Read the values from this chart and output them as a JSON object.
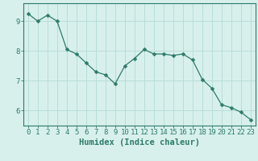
{
  "x": [
    0,
    1,
    2,
    3,
    4,
    5,
    6,
    7,
    8,
    9,
    10,
    11,
    12,
    13,
    14,
    15,
    16,
    17,
    18,
    19,
    20,
    21,
    22,
    23
  ],
  "y": [
    9.25,
    9.0,
    9.2,
    9.0,
    8.05,
    7.9,
    7.6,
    7.3,
    7.2,
    6.9,
    7.5,
    7.75,
    8.05,
    7.9,
    7.9,
    7.85,
    7.9,
    7.7,
    7.05,
    6.75,
    6.2,
    6.1,
    5.95,
    5.7
  ],
  "line_color": "#2d7b6b",
  "marker": "D",
  "marker_size": 2.5,
  "bg_color": "#d8f0ec",
  "grid_color": "#b8ddd8",
  "xlabel": "Humidex (Indice chaleur)",
  "xlim": [
    -0.5,
    23.5
  ],
  "ylim": [
    5.5,
    9.6
  ],
  "yticks": [
    6,
    7,
    8,
    9
  ],
  "xticks": [
    0,
    1,
    2,
    3,
    4,
    5,
    6,
    7,
    8,
    9,
    10,
    11,
    12,
    13,
    14,
    15,
    16,
    17,
    18,
    19,
    20,
    21,
    22,
    23
  ],
  "tick_fontsize": 6.5,
  "xlabel_fontsize": 7.5
}
